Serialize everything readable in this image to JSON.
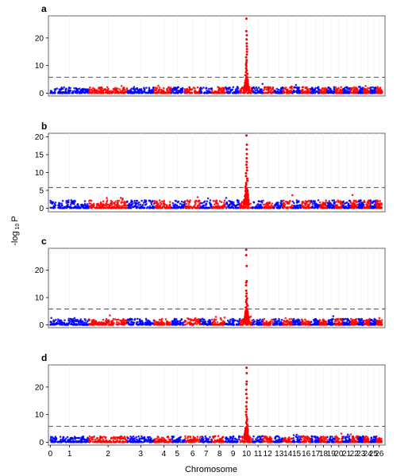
{
  "ylabel_main": "-log",
  "ylabel_sub": "10",
  "ylabel_tail": "P",
  "xlabel": "Chromosome",
  "threshold": 5.8,
  "colors": {
    "odd": "#0000ff",
    "even": "#ff0000",
    "threshold": "#555555",
    "grid": "#eeeeee",
    "frame": "#666666"
  },
  "chart_data": {
    "type": "scatter",
    "chromosome_ticks": [
      {
        "label": "0",
        "pos": 0
      },
      {
        "label": "1",
        "pos": 1
      },
      {
        "label": "2",
        "pos": 3
      },
      {
        "label": "3",
        "pos": 4.7
      },
      {
        "label": "4",
        "pos": 5.9
      },
      {
        "label": "5",
        "pos": 6.6
      },
      {
        "label": "6",
        "pos": 7.4
      },
      {
        "label": "7",
        "pos": 8.1
      },
      {
        "label": "8",
        "pos": 8.8
      },
      {
        "label": "9",
        "pos": 9.5
      },
      {
        "label": "10",
        "pos": 10.2
      },
      {
        "label": "11",
        "pos": 10.8
      },
      {
        "label": "12",
        "pos": 11.3
      },
      {
        "label": "13",
        "pos": 11.9
      },
      {
        "label": "14",
        "pos": 12.35
      },
      {
        "label": "15",
        "pos": 12.8
      },
      {
        "label": "16",
        "pos": 13.3
      },
      {
        "label": "17",
        "pos": 13.8
      },
      {
        "label": "18",
        "pos": 14.2
      },
      {
        "label": "19",
        "pos": 14.6
      },
      {
        "label": "20",
        "pos": 15.0
      },
      {
        "label": "21",
        "pos": 15.4
      },
      {
        "label": "22",
        "pos": 15.8
      },
      {
        "label": "23",
        "pos": 16.15
      },
      {
        "label": "24",
        "pos": 16.5
      },
      {
        "label": "25",
        "pos": 16.8
      },
      {
        "label": "26",
        "pos": 17.1
      }
    ],
    "chromosome_segments": [
      {
        "chr": 1,
        "start": 0,
        "end": 2.0
      },
      {
        "chr": 2,
        "start": 2.0,
        "end": 4.0
      },
      {
        "chr": 3,
        "start": 4.0,
        "end": 5.4
      },
      {
        "chr": 4,
        "start": 5.4,
        "end": 6.3
      },
      {
        "chr": 5,
        "start": 6.3,
        "end": 7.0
      },
      {
        "chr": 6,
        "start": 7.0,
        "end": 7.8
      },
      {
        "chr": 7,
        "start": 7.8,
        "end": 8.4
      },
      {
        "chr": 8,
        "start": 8.4,
        "end": 9.1
      },
      {
        "chr": 9,
        "start": 9.1,
        "end": 9.85
      },
      {
        "chr": 10,
        "start": 9.85,
        "end": 10.5
      },
      {
        "chr": 11,
        "start": 10.5,
        "end": 11.05
      },
      {
        "chr": 12,
        "start": 11.05,
        "end": 11.6
      },
      {
        "chr": 13,
        "start": 11.6,
        "end": 12.1
      },
      {
        "chr": 14,
        "start": 12.1,
        "end": 12.6
      },
      {
        "chr": 15,
        "start": 12.6,
        "end": 13.05
      },
      {
        "chr": 16,
        "start": 13.05,
        "end": 13.55
      },
      {
        "chr": 17,
        "start": 13.55,
        "end": 14.0
      },
      {
        "chr": 18,
        "start": 14.0,
        "end": 14.4
      },
      {
        "chr": 19,
        "start": 14.4,
        "end": 14.8
      },
      {
        "chr": 20,
        "start": 14.8,
        "end": 15.2
      },
      {
        "chr": 21,
        "start": 15.2,
        "end": 15.6
      },
      {
        "chr": 22,
        "start": 15.6,
        "end": 16.0
      },
      {
        "chr": 23,
        "start": 16.0,
        "end": 16.3
      },
      {
        "chr": 24,
        "start": 16.3,
        "end": 16.65
      },
      {
        "chr": 25,
        "start": 16.65,
        "end": 16.95
      },
      {
        "chr": 26,
        "start": 16.95,
        "end": 17.25
      }
    ],
    "xlim": [
      -0.1,
      17.4
    ],
    "panels": [
      {
        "letter": "a",
        "ylim": [
          -1,
          28
        ],
        "yticks": [
          0,
          10,
          20
        ],
        "peak_pos": 10.2,
        "peak_points": [
          27,
          22.5,
          21,
          19.5,
          18,
          17,
          16,
          15,
          14,
          13,
          12,
          11.2,
          10.5,
          9.8,
          9,
          8.3,
          7.6,
          7,
          6.5,
          6,
          5.5,
          5,
          4.6,
          4.2,
          3.8,
          3.4,
          3,
          2.6,
          2.2
        ]
      },
      {
        "letter": "b",
        "ylim": [
          -1,
          21
        ],
        "yticks": [
          0,
          5,
          10,
          15,
          20
        ],
        "peak_pos": 10.2,
        "peak_points": [
          20.4,
          17.8,
          16.5,
          15.2,
          14,
          13,
          12.2,
          11.4,
          10.6,
          9.8,
          9,
          8.3,
          7.7,
          7.1,
          6.6,
          6.1,
          5.6,
          5.1,
          4.6,
          4.2,
          3.8,
          3.4,
          3,
          2.6
        ]
      },
      {
        "letter": "c",
        "ylim": [
          -1,
          28
        ],
        "yticks": [
          0,
          10,
          20
        ],
        "peak_pos": 10.2,
        "peak_points": [
          27.5,
          25.5,
          21.5,
          16,
          15.5,
          14.5,
          12.5,
          11.5,
          10.5,
          9.7,
          9,
          8.3,
          7.6,
          7,
          6.4,
          5.8,
          5.2,
          4.7,
          4.2,
          3.7,
          3.2,
          2.7
        ]
      },
      {
        "letter": "d",
        "ylim": [
          -1,
          28
        ],
        "yticks": [
          0,
          10,
          20
        ],
        "peak_pos": 10.2,
        "peak_points": [
          27,
          25,
          22,
          21,
          19,
          17.5,
          16,
          14.5,
          13,
          12,
          11,
          10,
          9.2,
          8.4,
          7.7,
          7,
          6.4,
          5.8,
          5.2,
          4.7,
          4.2,
          3.7,
          3.2,
          2.7
        ]
      }
    ]
  }
}
